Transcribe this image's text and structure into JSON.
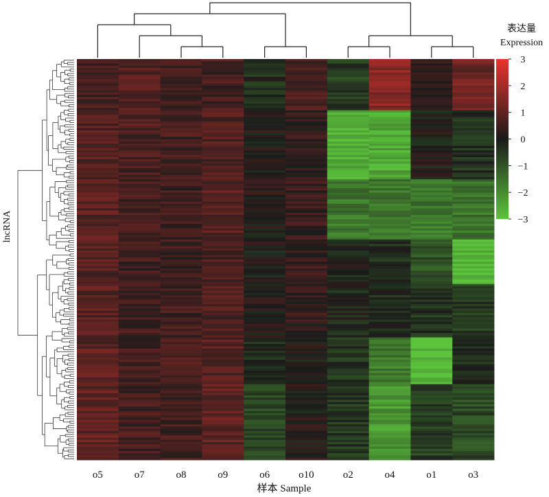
{
  "chart_data": {
    "type": "heatmap",
    "title": "",
    "xlabel": "样本 Sample",
    "ylabel": "lncRNA",
    "columns": [
      "o5",
      "o7",
      "o8",
      "o9",
      "o6",
      "o10",
      "o2",
      "o4",
      "o1",
      "o3"
    ],
    "column_dendrogram": "((o5,(o7,(o8,o9))),(o6,o10)),((o2,o4),(o1,o3))",
    "row_count": 180,
    "colorbar": {
      "title_cn": "表达量",
      "title_en": "Expression",
      "ticks": [
        "3",
        "2",
        "1",
        "0",
        "−1",
        "−2",
        "−3"
      ],
      "range": [
        -3,
        3
      ],
      "low_color": "#5cc43c",
      "mid_color": "#1b1b1b",
      "high_color": "#e8342f"
    },
    "block_pattern_note": "approximate expression blocks read from the image",
    "blocks": [
      {
        "rows": [
          0,
          22
        ],
        "values": [
          0.6,
          0.8,
          0.6,
          0.6,
          -0.3,
          0.6,
          -0.6,
          1.6,
          0.2,
          1.2
        ]
      },
      {
        "rows": [
          23,
          53
        ],
        "values": [
          0.8,
          0.7,
          0.6,
          0.8,
          0.1,
          0.3,
          -2.6,
          -2.5,
          0.0,
          -0.4
        ]
      },
      {
        "rows": [
          54,
          80
        ],
        "values": [
          0.9,
          0.6,
          0.5,
          0.9,
          0.1,
          0.4,
          -1.6,
          -1.6,
          -1.6,
          -1.5
        ]
      },
      {
        "rows": [
          81,
          100
        ],
        "values": [
          0.8,
          0.5,
          0.5,
          0.7,
          0.0,
          0.4,
          -0.1,
          -0.3,
          -1.0,
          -2.8
        ]
      },
      {
        "rows": [
          101,
          124
        ],
        "values": [
          0.9,
          0.6,
          0.6,
          0.8,
          0.1,
          0.3,
          -0.2,
          -0.3,
          -0.4,
          -0.5
        ]
      },
      {
        "rows": [
          125,
          145
        ],
        "values": [
          0.9,
          0.6,
          0.6,
          0.9,
          -0.3,
          0.0,
          -0.4,
          -1.7,
          -2.9,
          -0.2
        ]
      },
      {
        "rows": [
          146,
          179
        ],
        "values": [
          1.0,
          0.6,
          0.6,
          1.0,
          -0.8,
          0.1,
          -0.5,
          -2.2,
          -0.6,
          -0.8
        ]
      }
    ]
  }
}
